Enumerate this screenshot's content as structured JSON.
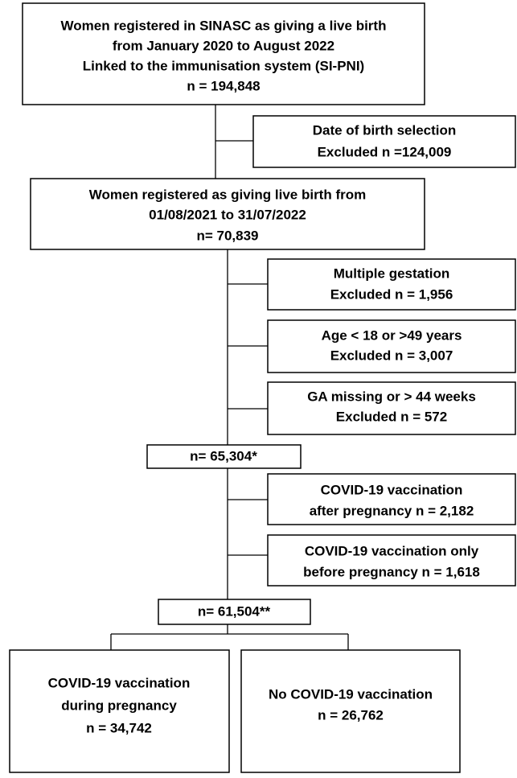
{
  "nodes": [
    {
      "lines": [
        "Women registered in SINASC as giving a live birth",
        "from January 2020 to August 2022",
        "Linked to the immunisation system (SI-PNI)",
        "n = 194,848"
      ]
    },
    {
      "lines": [
        "Date of birth selection",
        "Excluded n =124,009"
      ]
    },
    {
      "lines": [
        "Women registered as giving live birth from",
        "01/08/2021 to 31/07/2022",
        "n= 70,839"
      ]
    },
    {
      "lines": [
        "Multiple gestation",
        "Excluded n = 1,956"
      ]
    },
    {
      "lines": [
        "Age < 18 or >49 years",
        "Excluded n = 3,007"
      ]
    },
    {
      "lines": [
        "GA missing or > 44 weeks",
        "Excluded n = 572"
      ]
    },
    {
      "lines": [
        "n= 65,304*"
      ]
    },
    {
      "lines": [
        "COVID-19 vaccination",
        "after pregnancy n = 2,182"
      ]
    },
    {
      "lines": [
        "COVID-19 vaccination only",
        "before pregnancy n = 1,618"
      ]
    },
    {
      "lines": [
        "n= 61,504**"
      ]
    },
    {
      "lines": [
        "COVID-19 vaccination",
        "during pregnancy",
        "n = 34,742"
      ]
    },
    {
      "lines": [
        "No COVID-19 vaccination",
        "n = 26,762"
      ]
    }
  ]
}
